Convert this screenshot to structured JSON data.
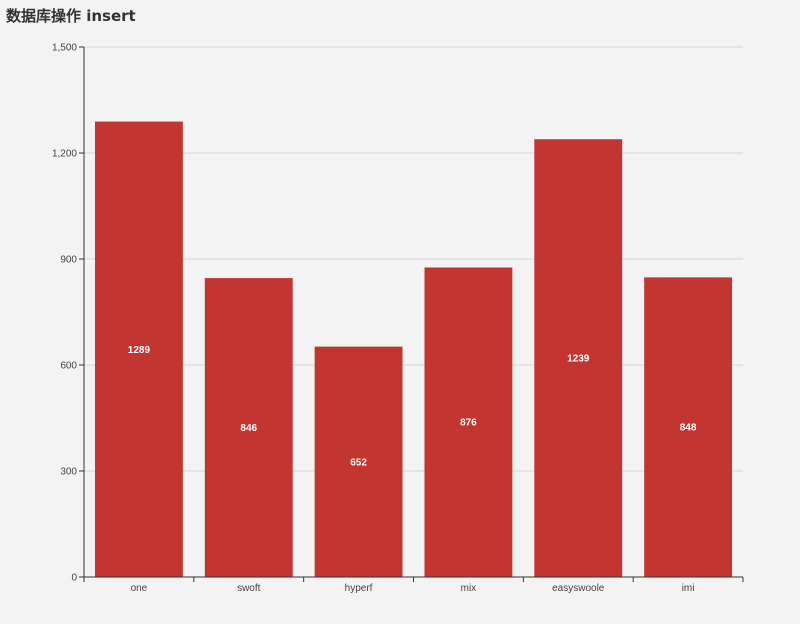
{
  "title": "数据库操作 insert",
  "colors": {
    "bar": "#c23531",
    "grid": "#d4d4d4",
    "axis": "#333333",
    "background": "#f3f3f3"
  },
  "chart_data": {
    "type": "bar",
    "title": "数据库操作 insert",
    "categories": [
      "one",
      "swoft",
      "hyperf",
      "mix",
      "easyswoole",
      "imi"
    ],
    "values": [
      1289,
      846,
      652,
      876,
      1239,
      848
    ],
    "data_labels": [
      "1289",
      "846",
      "652",
      "876",
      "1239",
      "848"
    ],
    "y_ticks": [
      0,
      300,
      600,
      900,
      1200,
      1500
    ],
    "y_tick_labels": [
      "0",
      "300",
      "600",
      "900",
      "1,200",
      "1,500"
    ],
    "ylim": [
      0,
      1500
    ],
    "xlabel": "",
    "ylabel": "",
    "grid": true,
    "legend": "none"
  }
}
